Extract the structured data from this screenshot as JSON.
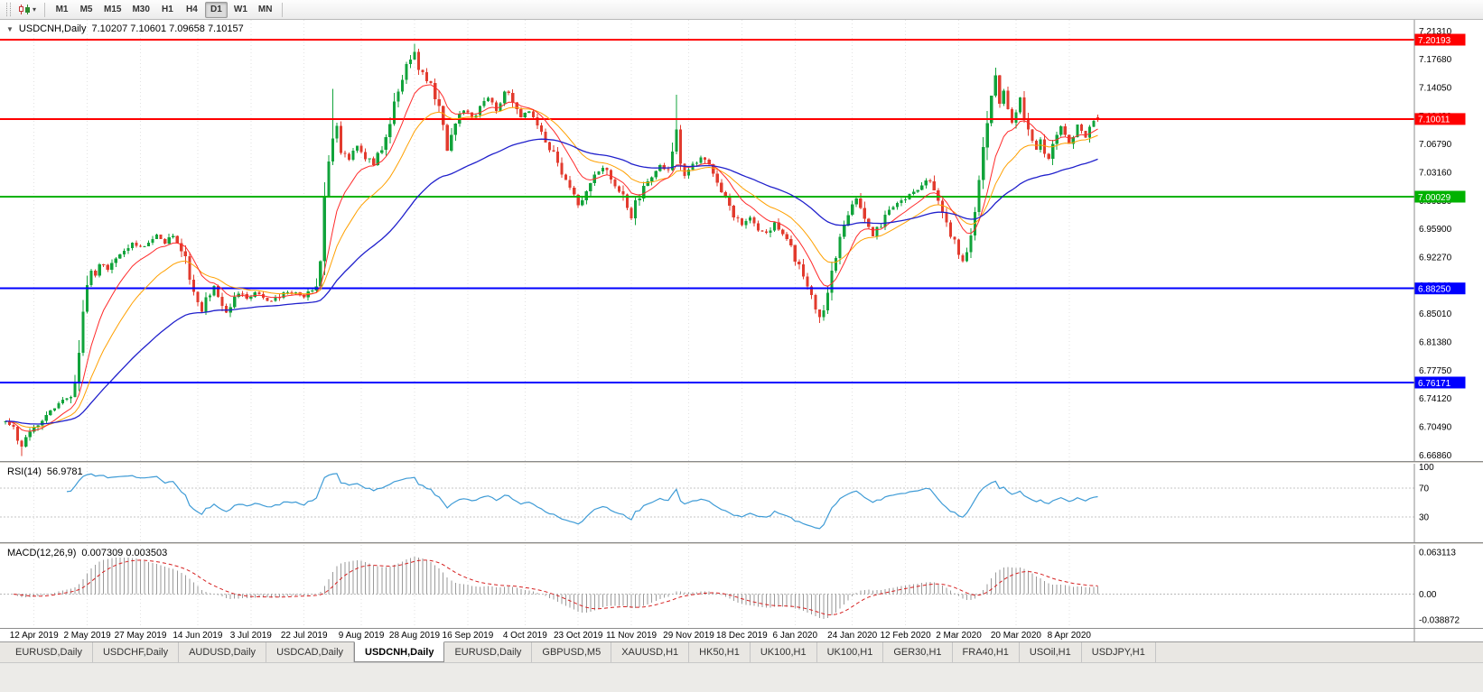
{
  "toolbar": {
    "timeframes": [
      "M1",
      "M5",
      "M15",
      "M30",
      "H1",
      "H4",
      "D1",
      "W1",
      "MN"
    ],
    "active_timeframe": "D1"
  },
  "chart": {
    "title": {
      "symbol": "USDCNH,Daily",
      "ohlc": "7.10207 7.10601 7.09658 7.10157"
    },
    "axis_labels": [
      "7.21310",
      "7.17680",
      "7.14050",
      "7.10420",
      "7.06790",
      "7.03160",
      "6.99530",
      "6.95900",
      "6.92270",
      "6.88640",
      "6.85010",
      "6.81380",
      "6.77750",
      "6.74120",
      "6.70490",
      "6.66860"
    ],
    "hlines": [
      {
        "price": 7.20193,
        "label": "7.20193",
        "color": "#FF0000"
      },
      {
        "price": 7.10011,
        "label": "7.10011",
        "color": "#FF0000"
      },
      {
        "price": 7.00029,
        "label": "7.00029",
        "color": "#00B200"
      },
      {
        "price": 6.8825,
        "label": "6.88250",
        "color": "#0000FF"
      },
      {
        "price": 6.76171,
        "label": "6.76171",
        "color": "#0000FF"
      }
    ],
    "date_labels": [
      "12 Apr 2019",
      "2 May 2019",
      "27 May 2019",
      "14 Jun 2019",
      "3 Jul 2019",
      "22 Jul 2019",
      "9 Aug 2019",
      "28 Aug 2019",
      "16 Sep 2019",
      "4 Oct 2019",
      "23 Oct 2019",
      "11 Nov 2019",
      "29 Nov 2019",
      "18 Dec 2019",
      "6 Jan 2020",
      "24 Jan 2020",
      "12 Feb 2020",
      "2 Mar 2020",
      "20 Mar 2020",
      "8 Apr 2020"
    ],
    "label_indices": [
      7,
      20,
      33,
      47,
      60,
      73,
      87,
      100,
      113,
      127,
      140,
      153,
      167,
      180,
      193,
      207,
      220,
      233,
      247,
      260
    ]
  },
  "rsi": {
    "label": "RSI(14)",
    "value": "56.9781",
    "axis_labels": [
      "100",
      "70",
      "30"
    ],
    "axis_values": [
      100,
      70,
      30
    ],
    "gridlines": [
      70,
      30
    ],
    "color": "#3E9BD6"
  },
  "macd": {
    "label": "MACD(12,26,9)",
    "values": "0.007309 0.003503",
    "axis_labels": [
      "0.063113",
      "0.00",
      "-0.038872"
    ],
    "axis_values": [
      0.063113,
      0,
      -0.038872
    ]
  },
  "tabs": [
    "EURUSD,Daily",
    "USDCHF,Daily",
    "AUDUSD,Daily",
    "USDCAD,Daily",
    "USDCNH,Daily",
    "EURUSD,Daily",
    "GBPUSD,M5",
    "XAUUSD,H1",
    "HK50,H1",
    "UK100,H1",
    "UK100,H1",
    "GER30,H1",
    "FRA40,H1",
    "USOil,H1",
    "USDJPY,H1"
  ],
  "active_tab_index": 4,
  "colors": {
    "up_candle": "#11A33B",
    "down_candle": "#E23B2E",
    "ma_fast": "#FF2A2A",
    "ma_mid": "#FFA000",
    "ma_slow": "#2020CC",
    "grid": "#E2E2E2",
    "axis_text": "#000000"
  },
  "chart_data": {
    "type": "candlestick",
    "symbol": "USDCNH",
    "timeframe": "Daily",
    "bars": 268,
    "y_range": [
      6.6609,
      7.2274
    ],
    "last_candle": {
      "open": 7.10207,
      "high": 7.10601,
      "low": 7.09658,
      "close": 7.10157
    },
    "levels": [
      7.20193,
      7.10011,
      7.00029,
      6.8825,
      6.76171
    ],
    "moving_average_periods": [
      10,
      21,
      55
    ],
    "rsi_period": 14,
    "rsi_last": 56.9781,
    "macd_params": [
      12,
      26,
      9
    ],
    "macd_last": [
      0.007309,
      0.003503
    ],
    "close_anchors": [
      [
        0,
        6.712
      ],
      [
        2,
        6.7
      ],
      [
        3,
        6.686
      ],
      [
        4,
        6.678
      ],
      [
        5,
        6.69
      ],
      [
        7,
        6.702
      ],
      [
        9,
        6.715
      ],
      [
        11,
        6.728
      ],
      [
        13,
        6.734
      ],
      [
        15,
        6.74
      ],
      [
        16,
        6.742
      ],
      [
        17,
        6.762
      ],
      [
        18,
        6.802
      ],
      [
        19,
        6.852
      ],
      [
        20,
        6.886
      ],
      [
        21,
        6.905
      ],
      [
        22,
        6.898
      ],
      [
        23,
        6.914
      ],
      [
        25,
        6.906
      ],
      [
        27,
        6.922
      ],
      [
        29,
        6.93
      ],
      [
        31,
        6.94
      ],
      [
        33,
        6.934
      ],
      [
        35,
        6.944
      ],
      [
        37,
        6.95
      ],
      [
        39,
        6.942
      ],
      [
        41,
        6.95
      ],
      [
        43,
        6.936
      ],
      [
        44,
        6.918
      ],
      [
        45,
        6.895
      ],
      [
        46,
        6.876
      ],
      [
        47,
        6.864
      ],
      [
        48,
        6.852
      ],
      [
        49,
        6.866
      ],
      [
        50,
        6.877
      ],
      [
        51,
        6.884
      ],
      [
        52,
        6.873
      ],
      [
        53,
        6.86
      ],
      [
        54,
        6.85
      ],
      [
        55,
        6.858
      ],
      [
        56,
        6.868
      ],
      [
        57,
        6.876
      ],
      [
        59,
        6.868
      ],
      [
        61,
        6.876
      ],
      [
        63,
        6.87
      ],
      [
        65,
        6.866
      ],
      [
        67,
        6.873
      ],
      [
        69,
        6.88
      ],
      [
        71,
        6.876
      ],
      [
        73,
        6.872
      ],
      [
        75,
        6.88
      ],
      [
        76,
        6.886
      ],
      [
        77,
        6.92
      ],
      [
        78,
        6.998
      ],
      [
        79,
        7.044
      ],
      [
        80,
        7.078
      ],
      [
        81,
        7.092
      ],
      [
        82,
        7.062
      ],
      [
        84,
        7.048
      ],
      [
        86,
        7.068
      ],
      [
        88,
        7.052
      ],
      [
        90,
        7.042
      ],
      [
        92,
        7.062
      ],
      [
        94,
        7.088
      ],
      [
        95,
        7.118
      ],
      [
        96,
        7.138
      ],
      [
        97,
        7.156
      ],
      [
        98,
        7.168
      ],
      [
        99,
        7.178
      ],
      [
        100,
        7.184
      ],
      [
        101,
        7.168
      ],
      [
        102,
        7.158
      ],
      [
        104,
        7.143
      ],
      [
        106,
        7.118
      ],
      [
        107,
        7.088
      ],
      [
        108,
        7.058
      ],
      [
        109,
        7.078
      ],
      [
        110,
        7.098
      ],
      [
        112,
        7.113
      ],
      [
        114,
        7.1
      ],
      [
        116,
        7.118
      ],
      [
        118,
        7.128
      ],
      [
        120,
        7.112
      ],
      [
        122,
        7.138
      ],
      [
        124,
        7.124
      ],
      [
        126,
        7.1
      ],
      [
        128,
        7.11
      ],
      [
        130,
        7.09
      ],
      [
        132,
        7.07
      ],
      [
        134,
        7.054
      ],
      [
        136,
        7.034
      ],
      [
        138,
        7.01
      ],
      [
        140,
        6.99
      ],
      [
        142,
        7.004
      ],
      [
        144,
        7.03
      ],
      [
        146,
        7.04
      ],
      [
        148,
        7.02
      ],
      [
        150,
        7.01
      ],
      [
        152,
        6.986
      ],
      [
        153,
        6.972
      ],
      [
        154,
        6.99
      ],
      [
        156,
        7.014
      ],
      [
        158,
        7.028
      ],
      [
        160,
        7.04
      ],
      [
        162,
        7.034
      ],
      [
        163,
        7.058
      ],
      [
        164,
        7.088
      ],
      [
        165,
        7.044
      ],
      [
        166,
        7.03
      ],
      [
        168,
        7.04
      ],
      [
        170,
        7.05
      ],
      [
        172,
        7.04
      ],
      [
        174,
        7.02
      ],
      [
        176,
        7.0
      ],
      [
        178,
        6.978
      ],
      [
        180,
        6.964
      ],
      [
        182,
        6.974
      ],
      [
        184,
        6.96
      ],
      [
        186,
        6.954
      ],
      [
        188,
        6.967
      ],
      [
        190,
        6.954
      ],
      [
        192,
        6.934
      ],
      [
        194,
        6.91
      ],
      [
        196,
        6.884
      ],
      [
        198,
        6.858
      ],
      [
        199,
        6.846
      ],
      [
        200,
        6.86
      ],
      [
        201,
        6.878
      ],
      [
        202,
        6.9
      ],
      [
        203,
        6.924
      ],
      [
        204,
        6.948
      ],
      [
        205,
        6.962
      ],
      [
        206,
        6.978
      ],
      [
        207,
        6.994
      ],
      [
        208,
        7.0
      ],
      [
        209,
        6.984
      ],
      [
        210,
        6.966
      ],
      [
        212,
        6.948
      ],
      [
        214,
        6.966
      ],
      [
        216,
        6.986
      ],
      [
        218,
        6.992
      ],
      [
        220,
        6.998
      ],
      [
        222,
        7.006
      ],
      [
        224,
        7.016
      ],
      [
        226,
        7.022
      ],
      [
        227,
        7.012
      ],
      [
        228,
        6.996
      ],
      [
        229,
        6.978
      ],
      [
        230,
        6.964
      ],
      [
        231,
        6.95
      ],
      [
        232,
        6.942
      ],
      [
        233,
        6.93
      ],
      [
        234,
        6.916
      ],
      [
        235,
        6.93
      ],
      [
        236,
        6.948
      ],
      [
        237,
        6.98
      ],
      [
        238,
        7.018
      ],
      [
        239,
        7.058
      ],
      [
        240,
        7.098
      ],
      [
        241,
        7.132
      ],
      [
        242,
        7.154
      ],
      [
        243,
        7.12
      ],
      [
        244,
        7.138
      ],
      [
        245,
        7.118
      ],
      [
        246,
        7.098
      ],
      [
        247,
        7.114
      ],
      [
        248,
        7.126
      ],
      [
        249,
        7.104
      ],
      [
        250,
        7.086
      ],
      [
        251,
        7.07
      ],
      [
        252,
        7.058
      ],
      [
        253,
        7.074
      ],
      [
        254,
        7.06
      ],
      [
        255,
        7.048
      ],
      [
        256,
        7.064
      ],
      [
        257,
        7.078
      ],
      [
        258,
        7.09
      ],
      [
        259,
        7.082
      ],
      [
        260,
        7.07
      ],
      [
        261,
        7.082
      ],
      [
        262,
        7.094
      ],
      [
        263,
        7.086
      ],
      [
        264,
        7.076
      ],
      [
        265,
        7.09
      ],
      [
        266,
        7.094
      ],
      [
        267,
        7.10157
      ]
    ],
    "wick_events": [
      {
        "i": 4,
        "low": 6.667
      },
      {
        "i": 80,
        "high": 7.139
      },
      {
        "i": 100,
        "high": 7.1965
      },
      {
        "i": 164,
        "high": 7.131
      },
      {
        "i": 199,
        "low": 6.838
      },
      {
        "i": 242,
        "high": 7.166
      }
    ]
  }
}
